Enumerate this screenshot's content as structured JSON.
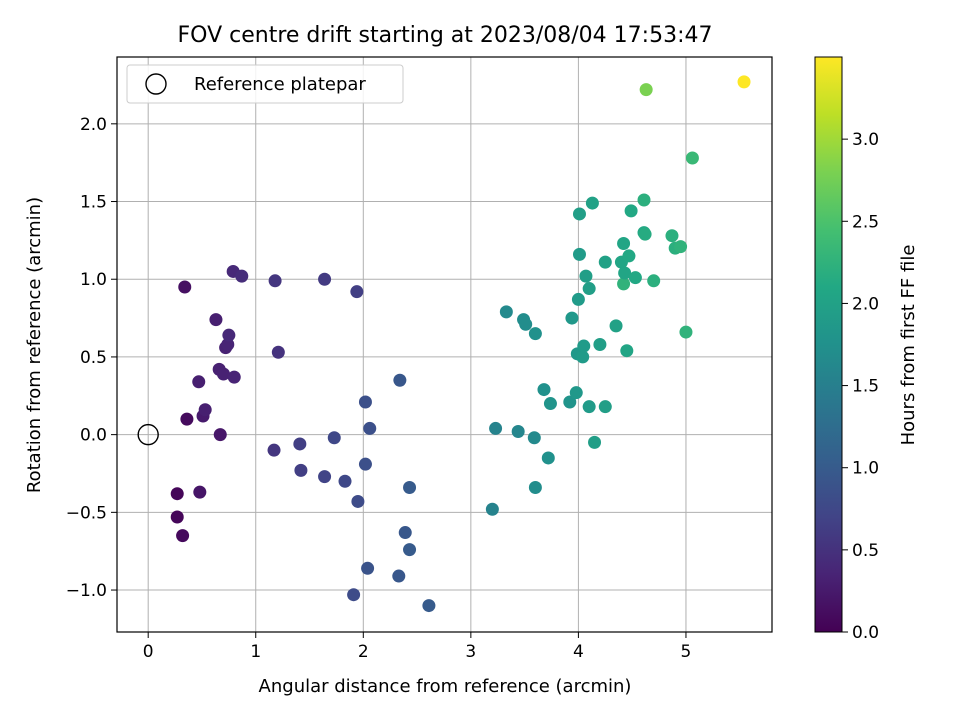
{
  "chart_data": {
    "type": "scatter",
    "title": "FOV centre drift starting at 2023/08/04 17:53:47",
    "xlabel": "Angular distance from reference (arcmin)",
    "ylabel": "Rotation from reference (arcmin)",
    "xlim": [
      -0.29,
      5.8
    ],
    "ylim": [
      -1.27,
      2.43
    ],
    "xticks": [
      0,
      1,
      2,
      3,
      4,
      5
    ],
    "yticks": [
      -1.0,
      -0.5,
      0.0,
      0.5,
      1.0,
      1.5,
      2.0
    ],
    "ytick_labels": [
      "−1.0",
      "−0.5",
      "0.0",
      "0.5",
      "1.0",
      "1.5",
      "2.0"
    ],
    "grid": true,
    "colormap": "viridis",
    "colorbar": {
      "label": "Hours from first FF file",
      "range": [
        0,
        3.5
      ],
      "ticks": [
        0.0,
        0.5,
        1.0,
        1.5,
        2.0,
        2.5,
        3.0
      ],
      "tick_labels": [
        "0.0",
        "0.5",
        "1.0",
        "1.5",
        "2.0",
        "2.5",
        "3.0"
      ]
    },
    "legend": {
      "entry": "Reference platepar",
      "placement": "top-left"
    },
    "reference_point": {
      "x": 0,
      "y": 0
    },
    "points": [
      {
        "x": 0.27,
        "y": -0.38,
        "h": 0.05
      },
      {
        "x": 0.27,
        "y": -0.53,
        "h": 0.05
      },
      {
        "x": 0.32,
        "y": -0.65,
        "h": 0.08
      },
      {
        "x": 0.34,
        "y": 0.95,
        "h": 0.15
      },
      {
        "x": 0.36,
        "y": 0.1,
        "h": 0.1
      },
      {
        "x": 0.47,
        "y": 0.34,
        "h": 0.3
      },
      {
        "x": 0.48,
        "y": -0.37,
        "h": 0.2
      },
      {
        "x": 0.51,
        "y": 0.12,
        "h": 0.25
      },
      {
        "x": 0.53,
        "y": 0.16,
        "h": 0.3
      },
      {
        "x": 0.63,
        "y": 0.74,
        "h": 0.3
      },
      {
        "x": 0.66,
        "y": 0.42,
        "h": 0.32
      },
      {
        "x": 0.67,
        "y": 0.0,
        "h": 0.22
      },
      {
        "x": 0.7,
        "y": 0.39,
        "h": 0.33
      },
      {
        "x": 0.72,
        "y": 0.56,
        "h": 0.33
      },
      {
        "x": 0.74,
        "y": 0.58,
        "h": 0.35
      },
      {
        "x": 0.75,
        "y": 0.64,
        "h": 0.4
      },
      {
        "x": 0.79,
        "y": 1.05,
        "h": 0.4
      },
      {
        "x": 0.8,
        "y": 0.37,
        "h": 0.35
      },
      {
        "x": 0.87,
        "y": 1.02,
        "h": 0.45
      },
      {
        "x": 1.17,
        "y": -0.1,
        "h": 0.55
      },
      {
        "x": 1.18,
        "y": 0.99,
        "h": 0.55
      },
      {
        "x": 1.21,
        "y": 0.53,
        "h": 0.5
      },
      {
        "x": 1.41,
        "y": -0.06,
        "h": 0.65
      },
      {
        "x": 1.42,
        "y": -0.23,
        "h": 0.65
      },
      {
        "x": 1.64,
        "y": 1.0,
        "h": 0.6
      },
      {
        "x": 1.64,
        "y": -0.27,
        "h": 0.7
      },
      {
        "x": 1.73,
        "y": -0.02,
        "h": 0.75
      },
      {
        "x": 1.83,
        "y": -0.3,
        "h": 0.75
      },
      {
        "x": 1.91,
        "y": -1.03,
        "h": 0.8
      },
      {
        "x": 1.94,
        "y": 0.92,
        "h": 0.65
      },
      {
        "x": 1.95,
        "y": -0.43,
        "h": 0.8
      },
      {
        "x": 2.02,
        "y": 0.21,
        "h": 0.85
      },
      {
        "x": 2.02,
        "y": -0.19,
        "h": 0.85
      },
      {
        "x": 2.04,
        "y": -0.86,
        "h": 0.9
      },
      {
        "x": 2.06,
        "y": 0.04,
        "h": 0.85
      },
      {
        "x": 2.33,
        "y": -0.91,
        "h": 0.95
      },
      {
        "x": 2.34,
        "y": 0.35,
        "h": 0.95
      },
      {
        "x": 2.39,
        "y": -0.63,
        "h": 0.95
      },
      {
        "x": 2.43,
        "y": -0.74,
        "h": 1.0
      },
      {
        "x": 2.43,
        "y": -0.34,
        "h": 1.0
      },
      {
        "x": 2.61,
        "y": -1.1,
        "h": 1.0
      },
      {
        "x": 3.2,
        "y": -0.48,
        "h": 1.55
      },
      {
        "x": 3.23,
        "y": 0.04,
        "h": 1.55
      },
      {
        "x": 3.33,
        "y": 0.79,
        "h": 1.65
      },
      {
        "x": 3.44,
        "y": 0.02,
        "h": 1.6
      },
      {
        "x": 3.49,
        "y": 0.74,
        "h": 1.7
      },
      {
        "x": 3.51,
        "y": 0.71,
        "h": 1.7
      },
      {
        "x": 3.59,
        "y": -0.02,
        "h": 1.65
      },
      {
        "x": 3.6,
        "y": -0.34,
        "h": 1.7
      },
      {
        "x": 3.6,
        "y": 0.65,
        "h": 1.75
      },
      {
        "x": 3.68,
        "y": 0.29,
        "h": 1.75
      },
      {
        "x": 3.72,
        "y": -0.15,
        "h": 1.75
      },
      {
        "x": 3.74,
        "y": 0.2,
        "h": 1.8
      },
      {
        "x": 3.92,
        "y": 0.21,
        "h": 1.8
      },
      {
        "x": 3.94,
        "y": 0.75,
        "h": 1.85
      },
      {
        "x": 3.98,
        "y": 0.27,
        "h": 1.85
      },
      {
        "x": 3.99,
        "y": 0.52,
        "h": 1.85
      },
      {
        "x": 4.0,
        "y": 0.87,
        "h": 1.9
      },
      {
        "x": 4.01,
        "y": 1.42,
        "h": 1.95
      },
      {
        "x": 4.01,
        "y": 1.16,
        "h": 1.9
      },
      {
        "x": 4.04,
        "y": 0.5,
        "h": 1.9
      },
      {
        "x": 4.05,
        "y": 0.57,
        "h": 1.9
      },
      {
        "x": 4.07,
        "y": 1.02,
        "h": 1.95
      },
      {
        "x": 4.1,
        "y": 0.18,
        "h": 1.9
      },
      {
        "x": 4.1,
        "y": 0.94,
        "h": 1.95
      },
      {
        "x": 4.13,
        "y": 1.49,
        "h": 2.0
      },
      {
        "x": 4.15,
        "y": -0.05,
        "h": 1.95
      },
      {
        "x": 4.2,
        "y": 0.58,
        "h": 1.95
      },
      {
        "x": 4.25,
        "y": 0.18,
        "h": 1.95
      },
      {
        "x": 4.25,
        "y": 1.11,
        "h": 2.0
      },
      {
        "x": 4.35,
        "y": 0.7,
        "h": 2.0
      },
      {
        "x": 4.4,
        "y": 1.11,
        "h": 2.05
      },
      {
        "x": 4.42,
        "y": 1.23,
        "h": 2.05
      },
      {
        "x": 4.42,
        "y": 0.97,
        "h": 2.25
      },
      {
        "x": 4.43,
        "y": 1.04,
        "h": 2.05
      },
      {
        "x": 4.45,
        "y": 0.54,
        "h": 2.05
      },
      {
        "x": 4.47,
        "y": 1.15,
        "h": 2.1
      },
      {
        "x": 4.49,
        "y": 1.44,
        "h": 2.1
      },
      {
        "x": 4.53,
        "y": 1.01,
        "h": 2.1
      },
      {
        "x": 4.61,
        "y": 1.51,
        "h": 2.2
      },
      {
        "x": 4.61,
        "y": 1.3,
        "h": 2.1
      },
      {
        "x": 4.62,
        "y": 1.29,
        "h": 2.15
      },
      {
        "x": 4.63,
        "y": 2.22,
        "h": 2.8
      },
      {
        "x": 4.7,
        "y": 0.99,
        "h": 2.2
      },
      {
        "x": 4.87,
        "y": 1.28,
        "h": 2.2
      },
      {
        "x": 4.9,
        "y": 1.2,
        "h": 2.2
      },
      {
        "x": 4.95,
        "y": 1.21,
        "h": 2.25
      },
      {
        "x": 5.0,
        "y": 0.66,
        "h": 2.25
      },
      {
        "x": 5.06,
        "y": 1.78,
        "h": 2.35
      },
      {
        "x": 5.54,
        "y": 2.27,
        "h": 3.5
      }
    ]
  }
}
